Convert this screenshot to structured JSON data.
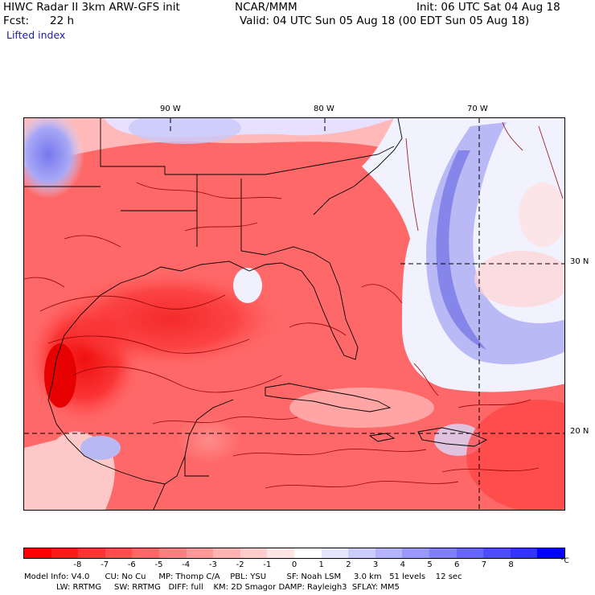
{
  "header": {
    "title": "HIWC Radar II 3km ARW-GFS init",
    "org": "NCAR/MMM",
    "init": "Init: 06 UTC Sat 04 Aug 18",
    "fcst_label": "Fcst:",
    "fcst_value": "22 h",
    "valid": "Valid: 04 UTC Sun 05 Aug 18 (00 EDT Sun 05 Aug 18)",
    "field": "Lifted index"
  },
  "map": {
    "lon_labels": [
      "90 W",
      "80 W",
      "70 W"
    ],
    "lat_labels": [
      "30 N",
      "20 N"
    ]
  },
  "colorbar": {
    "labels": [
      "-8",
      "-7",
      "-6",
      "-5",
      "-4",
      "-3",
      "-2",
      "-1",
      "0",
      "1",
      "2",
      "3",
      "4",
      "5",
      "6",
      "7",
      "8"
    ],
    "unit": "°C",
    "colors": [
      "#ff0000",
      "#ff1a1a",
      "#ff3333",
      "#ff4d4d",
      "#ff6666",
      "#ff8080",
      "#ff9999",
      "#ffb3b3",
      "#ffcccc",
      "#ffe6e6",
      "#ffffff",
      "#e6e6ff",
      "#ccccff",
      "#b3b3ff",
      "#9999ff",
      "#8080ff",
      "#6666ff",
      "#4d4dff",
      "#3333ff",
      "#0000ff"
    ]
  },
  "model_info": {
    "line1": "Model Info: V4.0      CU: No Cu     MP: Thomp C/A    PBL: YSU        SF: Noah LSM     3.0 km   51 levels    12 sec",
    "line2": "LW: RRTMG     SW: RRTMG   DIFF: full    KM: 2D Smagor DAMP: Rayleigh3  SFLAY: MM5"
  }
}
